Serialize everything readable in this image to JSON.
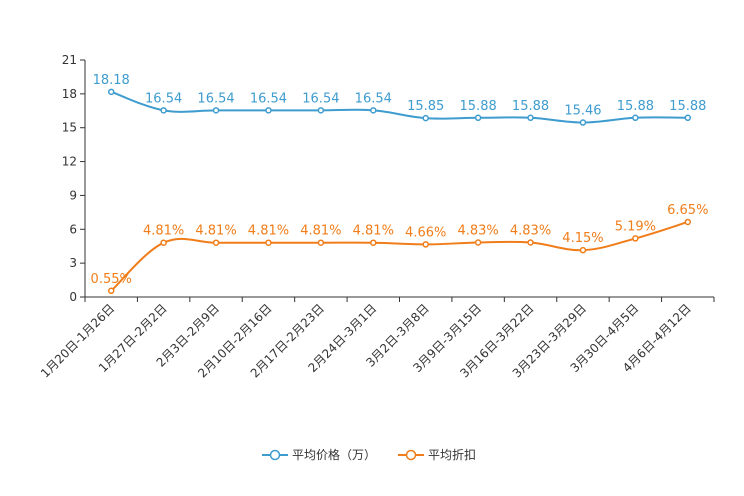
{
  "chart_data": {
    "type": "line",
    "title": "",
    "xlabel": "",
    "ylabel": "",
    "ylim": [
      0,
      21
    ],
    "yticks": [
      0,
      3,
      6,
      9,
      12,
      15,
      18,
      21
    ],
    "grid": false,
    "legend_position": "bottom-center",
    "categories": [
      "1月20日-1月26日",
      "1月27日-2月2日",
      "2月3日-2月9日",
      "2月10日-2月16日",
      "2月17日-2月23日",
      "2月24日-3月1日",
      "3月2日-3月8日",
      "3月9日-3月15日",
      "3月16日-3月22日",
      "3月23日-3月29日",
      "3月30日-4月5日",
      "4月6日-4月12日"
    ],
    "series": [
      {
        "name": "平均价格（万）",
        "color": "#3e9ccf",
        "values": [
          18.18,
          16.54,
          16.54,
          16.54,
          16.54,
          16.54,
          15.85,
          15.88,
          15.88,
          15.46,
          15.88,
          15.88
        ],
        "labels": [
          "18.18",
          "16.54",
          "16.54",
          "16.54",
          "16.54",
          "16.54",
          "15.85",
          "15.88",
          "15.88",
          "15.46",
          "15.88",
          "15.88"
        ]
      },
      {
        "name": "平均折扣",
        "color": "#f07d1a",
        "values": [
          0.55,
          4.81,
          4.81,
          4.81,
          4.81,
          4.81,
          4.66,
          4.83,
          4.83,
          4.15,
          5.19,
          6.65
        ],
        "labels": [
          "0.55%",
          "4.81%",
          "4.81%",
          "4.81%",
          "4.81%",
          "4.81%",
          "4.66%",
          "4.83%",
          "4.83%",
          "4.15%",
          "5.19%",
          "6.65%"
        ]
      }
    ]
  }
}
